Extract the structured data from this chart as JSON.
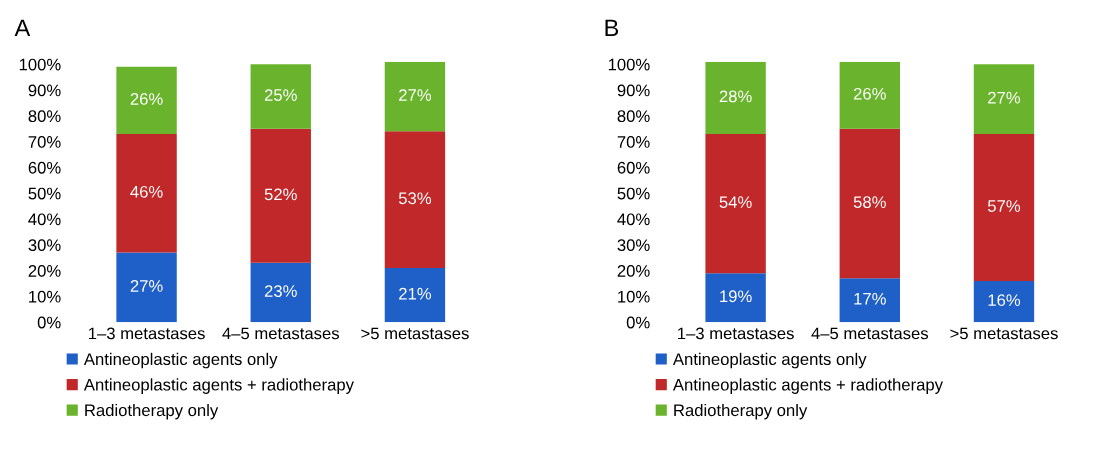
{
  "chart_data": [
    {
      "type": "bar",
      "title": "A",
      "stacked": true,
      "legend": "bottom",
      "grid": false,
      "categories": [
        "1–3 metastases",
        "4–5 metastases",
        ">5 metastases"
      ],
      "ylim": [
        0,
        101
      ],
      "yticks": [
        {
          "value": 0,
          "label": "0%"
        },
        {
          "value": 10,
          "label": "10%"
        },
        {
          "value": 20,
          "label": "20%"
        },
        {
          "value": 30,
          "label": "30%"
        },
        {
          "value": 40,
          "label": "40%"
        },
        {
          "value": 50,
          "label": "50%"
        },
        {
          "value": 60,
          "label": "60%"
        },
        {
          "value": 70,
          "label": "70%"
        },
        {
          "value": 80,
          "label": "80%"
        },
        {
          "value": 90,
          "label": "90%"
        },
        {
          "value": 100,
          "label": "100%"
        }
      ],
      "series": [
        {
          "name": "Antineoplastic agents only",
          "color": "#1f5fc8",
          "values": [
            27,
            23,
            21
          ],
          "value_labels": [
            "27%",
            "23%",
            "21%"
          ]
        },
        {
          "name": "Antineoplastic agents + radiotherapy",
          "color": "#c0282a",
          "values": [
            46,
            52,
            53
          ],
          "value_labels": [
            "46%",
            "52%",
            "53%"
          ]
        },
        {
          "name": "Radiotherapy only",
          "color": "#6ab42d",
          "values": [
            26,
            25,
            27
          ],
          "value_labels": [
            "26%",
            "25%",
            "27%"
          ]
        }
      ]
    },
    {
      "type": "bar",
      "title": "B",
      "stacked": true,
      "legend": "bottom",
      "grid": false,
      "categories": [
        "1–3 metastases",
        "4–5 metastases",
        ">5 metastases"
      ],
      "ylim": [
        0,
        101
      ],
      "yticks": [
        {
          "value": 0,
          "label": "0%"
        },
        {
          "value": 10,
          "label": "10%"
        },
        {
          "value": 20,
          "label": "20%"
        },
        {
          "value": 30,
          "label": "30%"
        },
        {
          "value": 40,
          "label": "40%"
        },
        {
          "value": 50,
          "label": "50%"
        },
        {
          "value": 60,
          "label": "60%"
        },
        {
          "value": 70,
          "label": "70%"
        },
        {
          "value": 80,
          "label": "80%"
        },
        {
          "value": 90,
          "label": "90%"
        },
        {
          "value": 100,
          "label": "100%"
        }
      ],
      "series": [
        {
          "name": "Antineoplastic agents only",
          "color": "#1f5fc8",
          "values": [
            19,
            17,
            16
          ],
          "value_labels": [
            "19%",
            "17%",
            "16%"
          ]
        },
        {
          "name": "Antineoplastic agents + radiotherapy",
          "color": "#c0282a",
          "values": [
            54,
            58,
            57
          ],
          "value_labels": [
            "54%",
            "58%",
            "57%"
          ]
        },
        {
          "name": "Radiotherapy only",
          "color": "#6ab42d",
          "values": [
            28,
            26,
            27
          ],
          "value_labels": [
            "28%",
            "26%",
            "27%"
          ]
        }
      ]
    }
  ]
}
